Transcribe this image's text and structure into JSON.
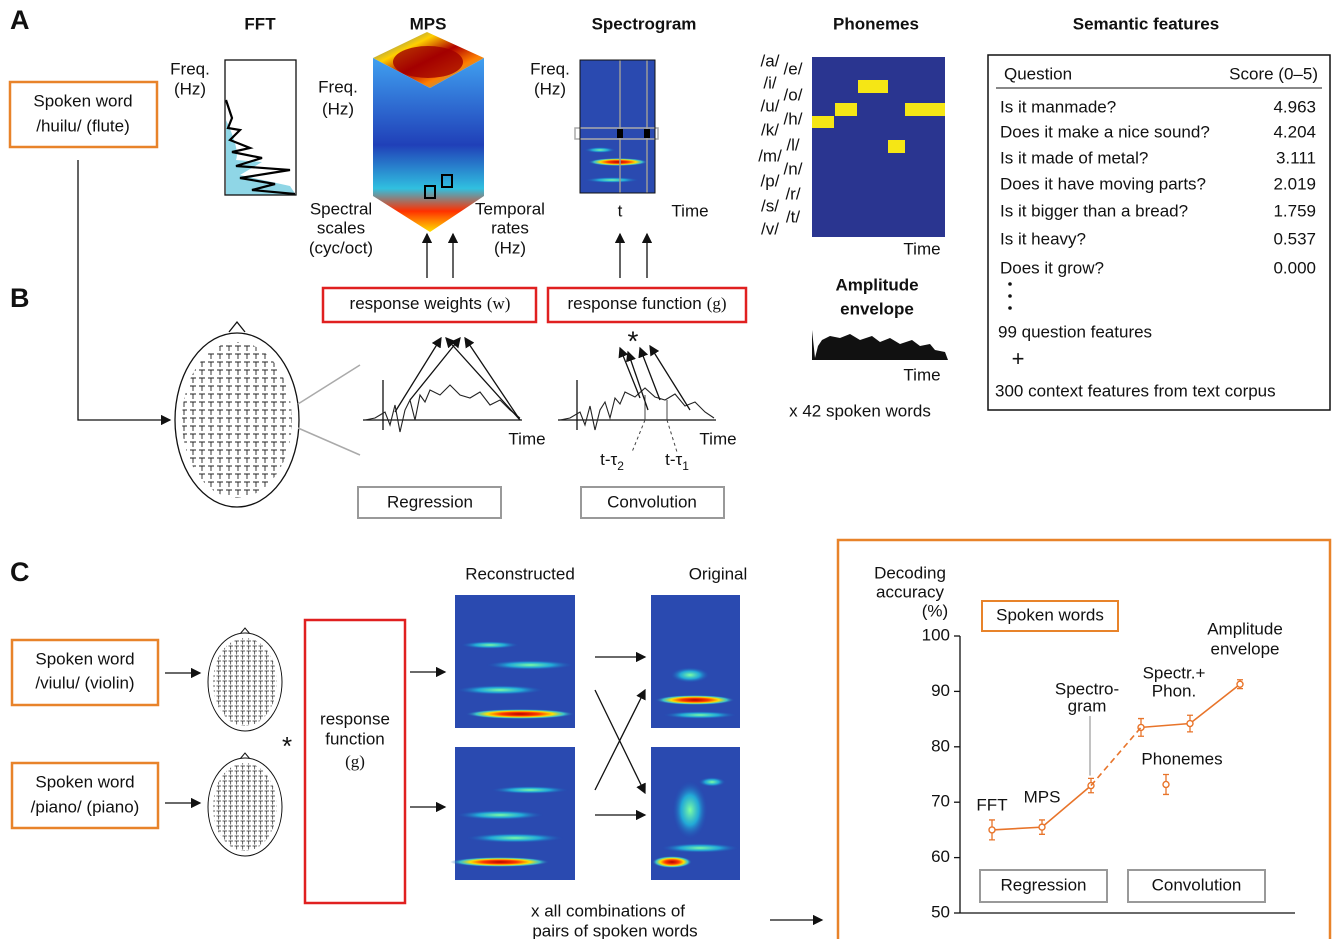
{
  "panel_labels": [
    "A",
    "B",
    "C"
  ],
  "panel_a": {
    "column_titles": [
      "FFT",
      "MPS",
      "Spectrogram",
      "Phonemes",
      "Semantic features"
    ],
    "stimulus": [
      "Spoken word",
      "/huilu/ (flute)"
    ],
    "fft_axis": [
      "Freq.",
      "(Hz)"
    ],
    "mps_axis": [
      "Freq.",
      "(Hz)"
    ],
    "mps_spectral": [
      "Spectral",
      "scales",
      "(cyc/oct)"
    ],
    "mps_temporal": [
      "Temporal",
      "rates",
      "(Hz)"
    ],
    "spectrogram_axis": [
      "Freq.",
      "(Hz)"
    ],
    "spectrogram_t": "t",
    "spectrogram_time": "Time",
    "phonemes_left": [
      "/a/",
      "/i/",
      "/u/",
      "/k/",
      "/m/",
      "/p/",
      "/s/",
      "/v/"
    ],
    "phonemes_right": [
      "/e/",
      "/o/",
      "/h/",
      "/l/",
      "/n/",
      "/r/",
      "/t/"
    ],
    "phonemes_time": "Time",
    "envelope_title": [
      "Amplitude",
      "envelope"
    ],
    "envelope_time": "Time",
    "word_count": "x 42 spoken words",
    "semantic": {
      "header": [
        "Question",
        "Score (0–5)"
      ],
      "rows": [
        [
          "Is it manmade?",
          "4.963"
        ],
        [
          "Does it make a nice sound?",
          "4.204"
        ],
        [
          "Is it made of metal?",
          "3.111"
        ],
        [
          "Does it have moving parts?",
          "2.019"
        ],
        [
          "Is it bigger than a bread?",
          "1.759"
        ],
        [
          "Is it heavy?",
          "0.537"
        ],
        [
          "Does it grow?",
          "0.000"
        ]
      ],
      "question_count": "99 question features",
      "plus": "+",
      "context": "300 context features from text corpus"
    }
  },
  "panel_b": {
    "weights": [
      "response weights",
      "(w)"
    ],
    "function": [
      "response function",
      "(g)"
    ],
    "star": "*",
    "time": [
      "Time",
      "Time"
    ],
    "taus": [
      [
        "t-τ",
        "2"
      ],
      [
        "t-τ",
        "1"
      ]
    ],
    "methods": [
      "Regression",
      "Convolution"
    ]
  },
  "panel_c": {
    "stimuli": [
      [
        "Spoken word",
        "/viulu/ (violin)"
      ],
      [
        "Spoken word",
        "/piano/ (piano)"
      ]
    ],
    "star": "*",
    "function": [
      "response",
      "function",
      "(g)"
    ],
    "headers": [
      "Reconstructed",
      "Original"
    ],
    "footnote": [
      "x all combinations of",
      "pairs of spoken words"
    ]
  },
  "chart_data": {
    "type": "line",
    "ylabel": [
      "Decoding",
      "accuracy",
      "(%)"
    ],
    "legend": "Spoken words",
    "ylim": [
      50,
      100
    ],
    "yticks": [
      50,
      60,
      70,
      80,
      90,
      100
    ],
    "series": [
      {
        "name": "Regression",
        "color": "#e8742a",
        "values": [
          65,
          65.5,
          73
        ],
        "errors": [
          1.8,
          1.3,
          1.3
        ],
        "labels": [
          [
            "FFT"
          ],
          [
            "MPS"
          ],
          [
            "Spectro-",
            "gram"
          ]
        ]
      },
      {
        "name": "Convolution",
        "color": "#e8742a",
        "values": [
          83.5,
          84.2,
          91.3
        ],
        "errors": [
          1.6,
          1.5,
          0.8
        ],
        "labels": [
          null,
          [
            "Spectr.+",
            "Phon."
          ],
          [
            "Amplitude",
            "envelope"
          ]
        ]
      },
      {
        "name": "Phonemes",
        "color": "#e8742a",
        "values": [
          73.2
        ],
        "errors": [
          1.8
        ]
      }
    ]
  }
}
